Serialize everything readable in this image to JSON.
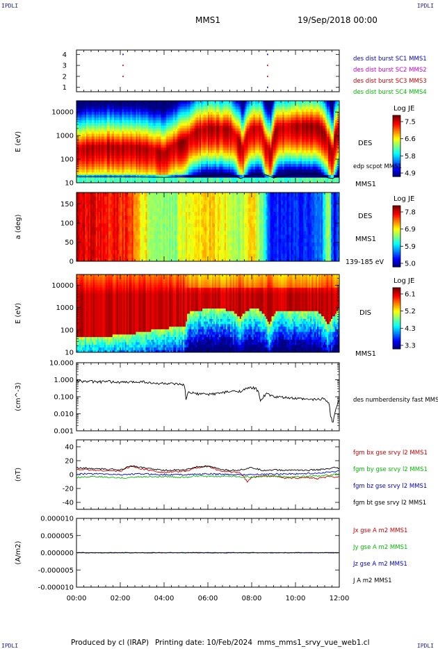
{
  "corners": {
    "top_left": "IPDLI",
    "top_right": "IPDLI",
    "bottom_left": "IPDLI",
    "bottom_right": "IPDLI"
  },
  "header": {
    "mission": "MMS1",
    "datetime": "19/Sep/2018 00:00"
  },
  "footer": {
    "produced_by": "Produced by cl (IRAP)",
    "printing_date": "Printing date: 10/Feb/2024",
    "filename": "mms_mms1_srvy_vue_web1.cl"
  },
  "x_ticks": [
    "00:00",
    "02:00",
    "04:00",
    "06:00",
    "08:00",
    "10:00",
    "12:00"
  ],
  "chart_data": [
    {
      "type": "scatter",
      "panel": "burst availability",
      "x_unit": "hours",
      "xlim": [
        0,
        12
      ],
      "ylim": [
        0.6,
        4.4
      ],
      "y_ticks": [
        "4",
        "3",
        "2",
        "1"
      ],
      "legend": [
        {
          "label": "des dist burst SC1 MMS1",
          "color": "#0000cc"
        },
        {
          "label": "des dist burst SC2 MMS2",
          "color": "#cc00cc"
        },
        {
          "label": "des dist burst SC3 MMS3",
          "color": "#cc0000"
        },
        {
          "label": "des dist burst SC4 MMS4",
          "color": "#00bb00"
        }
      ],
      "points": [
        {
          "x": 2.1,
          "y": 4,
          "color": "#0000cc"
        },
        {
          "x": 2.1,
          "y": 3,
          "color": "#cc0000"
        },
        {
          "x": 2.1,
          "y": 2,
          "color": "#cc0000"
        },
        {
          "x": 8.7,
          "y": 4,
          "color": "#0000cc"
        },
        {
          "x": 8.7,
          "y": 3,
          "color": "#cc0000"
        },
        {
          "x": 8.7,
          "y": 2,
          "color": "#cc0000"
        },
        {
          "x": 8.7,
          "y": 1,
          "color": "#0000cc"
        }
      ]
    },
    {
      "type": "heatmap",
      "panel": "DES energy spectrogram",
      "ylabel": "E (eV)",
      "y_scale": "log",
      "ylim": [
        10,
        30000
      ],
      "y_ticks": [
        "10000",
        "1000",
        "100",
        "10"
      ],
      "colorbar": {
        "title": "Log JE",
        "ticks": [
          "7.5",
          "6.6",
          "5.8",
          "4.9"
        ]
      },
      "labels": {
        "species": "DES",
        "overlay": "edp scpot MMS1",
        "spacecraft": "MMS1"
      },
      "peak_energy_profile": {
        "x": [
          0,
          0.5,
          1.5,
          2.0,
          2.3,
          3.5,
          4.0,
          4.5,
          5.0,
          5.5,
          6.0,
          7.0,
          7.4,
          7.6,
          8.0,
          8.4,
          8.6,
          8.9,
          9.2,
          10.0,
          11.0,
          11.5,
          11.7,
          12.0
        ],
        "y": [
          300,
          350,
          400,
          350,
          400,
          300,
          200,
          450,
          700,
          1800,
          2500,
          2200,
          700,
          250,
          2200,
          2500,
          500,
          180,
          2500,
          3000,
          3000,
          600,
          120,
          2500
        ]
      },
      "scpot_curve": {
        "x": [
          0,
          2,
          4,
          5,
          6,
          7,
          7.5,
          8,
          8.5,
          9,
          10,
          11,
          11.5,
          11.7,
          12
        ],
        "y": [
          18,
          18,
          17,
          18,
          20,
          22,
          15,
          22,
          24,
          16,
          24,
          24,
          16,
          15,
          22
        ]
      }
    },
    {
      "type": "heatmap",
      "panel": "DES pitch angle distribution",
      "ylabel": "a (deg)",
      "ylim": [
        0,
        180
      ],
      "y_ticks": [
        "150",
        "100",
        "50",
        "0"
      ],
      "colorbar": {
        "title": "Log JE",
        "ticks": [
          "7.8",
          "6.9",
          "5.9",
          "5.0"
        ]
      },
      "labels": {
        "species": "DES",
        "spacecraft": "MMS1",
        "energy_range": "139-185 eV"
      },
      "level_profile": {
        "x": [
          0,
          1.0,
          2.5,
          3.0,
          3.5,
          4.5,
          5.0,
          6.0,
          7.0,
          7.5,
          8.0,
          8.5,
          8.8,
          9.5,
          10.5,
          11.2,
          11.5,
          11.8,
          12
        ],
        "y": [
          7.6,
          7.5,
          7.3,
          6.8,
          6.6,
          6.4,
          6.8,
          6.9,
          6.7,
          6.5,
          6.9,
          6.4,
          5.5,
          5.4,
          5.5,
          5.6,
          6.6,
          5.1,
          5.8
        ]
      }
    },
    {
      "type": "heatmap",
      "panel": "DIS energy spectrogram",
      "ylabel": "E (eV)",
      "y_scale": "log",
      "ylim": [
        10,
        30000
      ],
      "y_ticks": [
        "10000",
        "1000",
        "100",
        "10"
      ],
      "colorbar": {
        "title": "Log JE",
        "ticks": [
          "6.1",
          "5.2",
          "4.3",
          "3.3"
        ]
      },
      "labels": {
        "species": "DIS",
        "spacecraft": "MMS1"
      },
      "low_energy_edge": {
        "x": [
          0,
          1,
          2,
          3,
          4,
          5,
          5.1,
          6,
          7,
          7.5,
          7.8,
          8.3,
          8.8,
          9.2,
          10,
          11,
          11.5,
          11.8,
          12
        ],
        "y": [
          50,
          50,
          60,
          80,
          120,
          150,
          600,
          900,
          800,
          300,
          800,
          900,
          150,
          800,
          800,
          700,
          150,
          500,
          900
        ]
      }
    },
    {
      "type": "line",
      "panel": "DES number density",
      "ylabel": "(cm^-3)",
      "y_scale": "log",
      "ylim": [
        0.001,
        10
      ],
      "y_ticks": [
        "10.000",
        "1.000",
        "0.100",
        "0.010",
        "0.001"
      ],
      "series": [
        {
          "name": "des numberdensity fast MMS1",
          "color": "#000000",
          "x": [
            0,
            0.5,
            1,
            1.5,
            2,
            2.5,
            3,
            3.5,
            4,
            4.5,
            4.9,
            5.0,
            5.1,
            5.5,
            6.0,
            6.5,
            7.0,
            7.5,
            7.8,
            8.0,
            8.2,
            8.4,
            8.7,
            9.0,
            9.5,
            10.0,
            10.5,
            11.0,
            11.3,
            11.5,
            11.6,
            11.7,
            11.8,
            11.9,
            12.0
          ],
          "y": [
            0.85,
            0.8,
            0.75,
            0.78,
            0.7,
            0.72,
            0.8,
            0.6,
            0.62,
            0.55,
            0.5,
            0.06,
            0.18,
            0.15,
            0.14,
            0.16,
            0.2,
            0.22,
            0.3,
            0.35,
            0.3,
            0.06,
            0.15,
            0.1,
            0.09,
            0.08,
            0.07,
            0.07,
            0.08,
            0.05,
            0.008,
            0.002,
            0.01,
            0.03,
            0.06
          ]
        }
      ]
    },
    {
      "type": "line",
      "panel": "FGM magnetic field",
      "ylabel": "(nT)",
      "ylim": [
        -50,
        50
      ],
      "y_ticks": [
        "40",
        "20",
        "0",
        "-20",
        "-40"
      ],
      "series": [
        {
          "name": "fgm bx gse srvy l2 MMS1",
          "color": "#cc0000",
          "x": [
            0,
            1,
            2,
            2.5,
            3,
            4,
            5,
            5.5,
            6,
            6.5,
            7,
            7.5,
            7.8,
            8,
            8.5,
            9,
            9.5,
            10,
            10.5,
            11,
            11.5,
            12
          ],
          "y": [
            8,
            6,
            5,
            12,
            8,
            3,
            5,
            10,
            12,
            6,
            4,
            2,
            -10,
            -4,
            -2,
            -2,
            -5,
            -5,
            -4,
            -6,
            -3,
            -4
          ]
        },
        {
          "name": "fgm by gse srvy l2 MMS1",
          "color": "#00bb00",
          "x": [
            0,
            1,
            2,
            3,
            4,
            5,
            5.5,
            6,
            7,
            7.5,
            8,
            8.5,
            9,
            9.5,
            10,
            11,
            11.5,
            12
          ],
          "y": [
            -4,
            -3,
            -5,
            -3,
            -3,
            -4,
            -2,
            -3,
            -2,
            -3,
            -4,
            -3,
            -2,
            -3,
            -3,
            -2,
            -1,
            1
          ]
        },
        {
          "name": "fgm bz gse srvy l2 MMS1",
          "color": "#0000cc",
          "x": [
            0,
            1,
            2,
            3,
            4,
            5,
            6,
            7,
            8,
            9,
            10,
            11,
            12
          ],
          "y": [
            1,
            1,
            0,
            1,
            0,
            0,
            1,
            0,
            0,
            1,
            1,
            2,
            5
          ]
        },
        {
          "name": "fgm bt gse srvy l2 MMS1",
          "color": "#000000",
          "x": [
            0,
            1,
            2,
            2.5,
            3,
            4,
            5,
            5.5,
            6,
            6.5,
            7,
            7.5,
            8,
            8.5,
            9,
            9.5,
            10,
            10.5,
            11,
            11.5,
            11.8,
            12
          ],
          "y": [
            10,
            8,
            7,
            13,
            10,
            6,
            7,
            11,
            12,
            8,
            6,
            7,
            10,
            6,
            7,
            6,
            7,
            6,
            7,
            8,
            10,
            9
          ]
        }
      ]
    },
    {
      "type": "line",
      "panel": "current density",
      "ylabel": "(A/m2)",
      "ylim": [
        -1e-05,
        1e-05
      ],
      "y_ticks": [
        "0.000010",
        "0.000005",
        "0.000000",
        "-0.000005",
        "-0.000010"
      ],
      "series": [
        {
          "name": "Jx gse A m2 MMS1",
          "color": "#cc0000",
          "x": [
            0,
            12
          ],
          "y": [
            0,
            0
          ]
        },
        {
          "name": "Jy gse A m2 MMS1",
          "color": "#00bb00",
          "x": [
            0,
            12
          ],
          "y": [
            0,
            0
          ]
        },
        {
          "name": "Jz gse A m2 MMS1",
          "color": "#0000cc",
          "x": [
            0,
            12
          ],
          "y": [
            0,
            0
          ]
        },
        {
          "name": "J A m2 MMS1",
          "color": "#000000",
          "x": [
            0,
            12
          ],
          "y": [
            0,
            0
          ]
        }
      ]
    }
  ]
}
